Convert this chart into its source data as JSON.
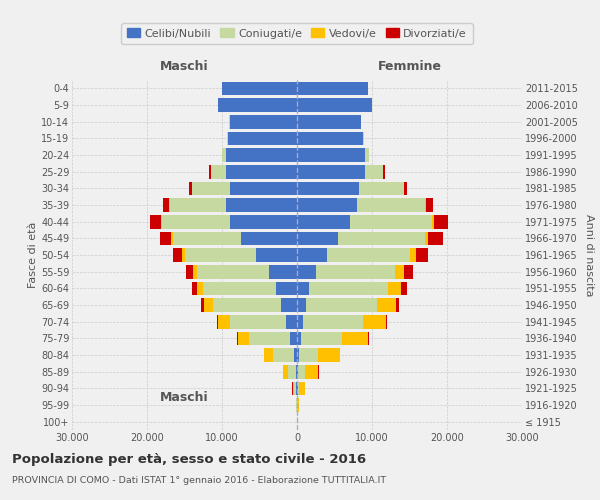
{
  "age_groups": [
    "100+",
    "95-99",
    "90-94",
    "85-89",
    "80-84",
    "75-79",
    "70-74",
    "65-69",
    "60-64",
    "55-59",
    "50-54",
    "45-49",
    "40-44",
    "35-39",
    "30-34",
    "25-29",
    "20-24",
    "15-19",
    "10-14",
    "5-9",
    "0-4"
  ],
  "birth_years": [
    "≤ 1915",
    "1916-1920",
    "1921-1925",
    "1926-1930",
    "1931-1935",
    "1936-1940",
    "1941-1945",
    "1946-1950",
    "1951-1955",
    "1956-1960",
    "1961-1965",
    "1966-1970",
    "1971-1975",
    "1976-1980",
    "1981-1985",
    "1986-1990",
    "1991-1995",
    "1996-2000",
    "2001-2005",
    "2006-2010",
    "2011-2015"
  ],
  "colors": {
    "celibe": "#4472c4",
    "coniugato": "#c5d9a0",
    "vedovo": "#ffc000",
    "divorziato": "#cc0000"
  },
  "maschi": {
    "celibe": [
      20,
      50,
      100,
      200,
      400,
      900,
      1500,
      2200,
      2800,
      3800,
      5500,
      7500,
      9000,
      9500,
      9000,
      9500,
      9500,
      9200,
      9000,
      10500,
      10000
    ],
    "coniugato": [
      30,
      80,
      300,
      1000,
      2800,
      5500,
      7500,
      9000,
      9800,
      9500,
      9500,
      9000,
      9000,
      7500,
      5000,
      2000,
      500,
      100,
      30,
      20,
      10
    ],
    "vedovo": [
      10,
      50,
      200,
      700,
      1200,
      1500,
      1500,
      1200,
      800,
      600,
      400,
      250,
      150,
      80,
      40,
      20,
      10,
      5,
      2,
      2,
      2
    ],
    "divorziato": [
      2,
      5,
      10,
      20,
      40,
      100,
      200,
      400,
      600,
      900,
      1200,
      1500,
      1400,
      800,
      400,
      150,
      50,
      20,
      5,
      2,
      2
    ]
  },
  "femmine": {
    "nubile": [
      10,
      30,
      80,
      150,
      250,
      500,
      800,
      1200,
      1600,
      2500,
      4000,
      5500,
      7000,
      8000,
      8200,
      9000,
      9000,
      8800,
      8500,
      10000,
      9500
    ],
    "coniugata": [
      20,
      60,
      250,
      900,
      2500,
      5500,
      8000,
      9500,
      10500,
      10500,
      11000,
      11500,
      11000,
      9000,
      6000,
      2500,
      600,
      100,
      30,
      20,
      10
    ],
    "vedova": [
      30,
      200,
      700,
      1800,
      3000,
      3500,
      3000,
      2500,
      1800,
      1200,
      800,
      500,
      300,
      150,
      80,
      30,
      15,
      5,
      2,
      2,
      2
    ],
    "divorziata": [
      2,
      5,
      10,
      20,
      40,
      80,
      200,
      400,
      700,
      1200,
      1600,
      1900,
      1800,
      1000,
      400,
      150,
      50,
      20,
      5,
      2,
      2
    ]
  },
  "xlim": 30000,
  "title": "Popolazione per età, sesso e stato civile - 2016",
  "subtitle": "PROVINCIA DI COMO - Dati ISTAT 1° gennaio 2016 - Elaborazione TUTTITALIA.IT",
  "ylabel_left": "Fasce di età",
  "ylabel_right": "Anni di nascita",
  "xlabel_left": "Maschi",
  "xlabel_right": "Femmine",
  "legend_labels": [
    "Celibi/Nubili",
    "Coniugati/e",
    "Vedovi/e",
    "Divorziati/e"
  ],
  "background_color": "#f0f0f0",
  "grid_color": "#cccccc"
}
